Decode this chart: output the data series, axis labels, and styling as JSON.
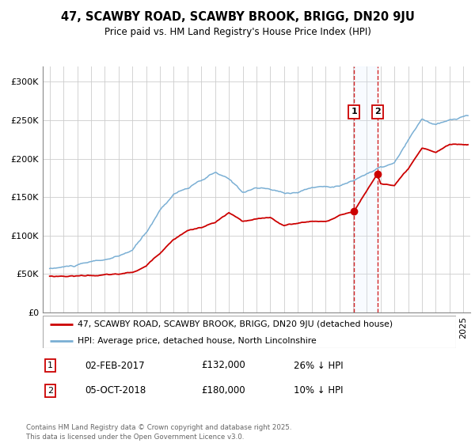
{
  "title": "47, SCAWBY ROAD, SCAWBY BROOK, BRIGG, DN20 9JU",
  "subtitle": "Price paid vs. HM Land Registry's House Price Index (HPI)",
  "legend_label_red": "47, SCAWBY ROAD, SCAWBY BROOK, BRIGG, DN20 9JU (detached house)",
  "legend_label_blue": "HPI: Average price, detached house, North Lincolnshire",
  "footer": "Contains HM Land Registry data © Crown copyright and database right 2025.\nThis data is licensed under the Open Government Licence v3.0.",
  "transaction1_date": "02-FEB-2017",
  "transaction1_price": "£132,000",
  "transaction1_hpi": "26% ↓ HPI",
  "transaction2_date": "05-OCT-2018",
  "transaction2_price": "£180,000",
  "transaction2_hpi": "10% ↓ HPI",
  "red_color": "#cc0000",
  "blue_color": "#7aafd4",
  "shade_color": "#ddeeff",
  "ylim": [
    0,
    320000
  ],
  "yticks": [
    0,
    50000,
    100000,
    150000,
    200000,
    250000,
    300000
  ],
  "xlim_start": 1994.5,
  "xlim_end": 2025.5,
  "transaction1_x": 2017.085,
  "transaction2_x": 2018.756,
  "transaction1_y": 132000,
  "transaction2_y": 180000,
  "hpi_keypoints_years": [
    1995,
    1996,
    1997,
    1998,
    1999,
    2000,
    2001,
    2002,
    2003,
    2004,
    2005,
    2006,
    2007,
    2008,
    2009,
    2010,
    2011,
    2012,
    2013,
    2014,
    2015,
    2016,
    2017,
    2018,
    2019,
    2020,
    2021,
    2022,
    2023,
    2024,
    2025.3
  ],
  "hpi_keypoints_vals": [
    57000,
    59000,
    61000,
    64000,
    67000,
    70000,
    78000,
    100000,
    130000,
    152000,
    160000,
    168000,
    178000,
    168000,
    152000,
    158000,
    155000,
    150000,
    152000,
    158000,
    160000,
    162000,
    168000,
    178000,
    185000,
    190000,
    218000,
    245000,
    238000,
    242000,
    248000
  ],
  "red_keypoints_years": [
    1995,
    1996,
    1997,
    1998,
    1999,
    2000,
    2001,
    2002,
    2003,
    2004,
    2005,
    2006,
    2007,
    2008,
    2009,
    2010,
    2011,
    2012,
    2013,
    2014,
    2015,
    2016,
    2017.085,
    2018.756,
    2019,
    2020,
    2021,
    2022,
    2023,
    2024,
    2025.3
  ],
  "red_keypoints_vals": [
    47000,
    47500,
    48000,
    49000,
    49500,
    50000,
    52000,
    60000,
    78000,
    97000,
    108000,
    112000,
    118000,
    130000,
    118000,
    120000,
    122000,
    112000,
    115000,
    118000,
    118000,
    125000,
    132000,
    180000,
    168000,
    165000,
    185000,
    210000,
    205000,
    215000,
    215000
  ]
}
